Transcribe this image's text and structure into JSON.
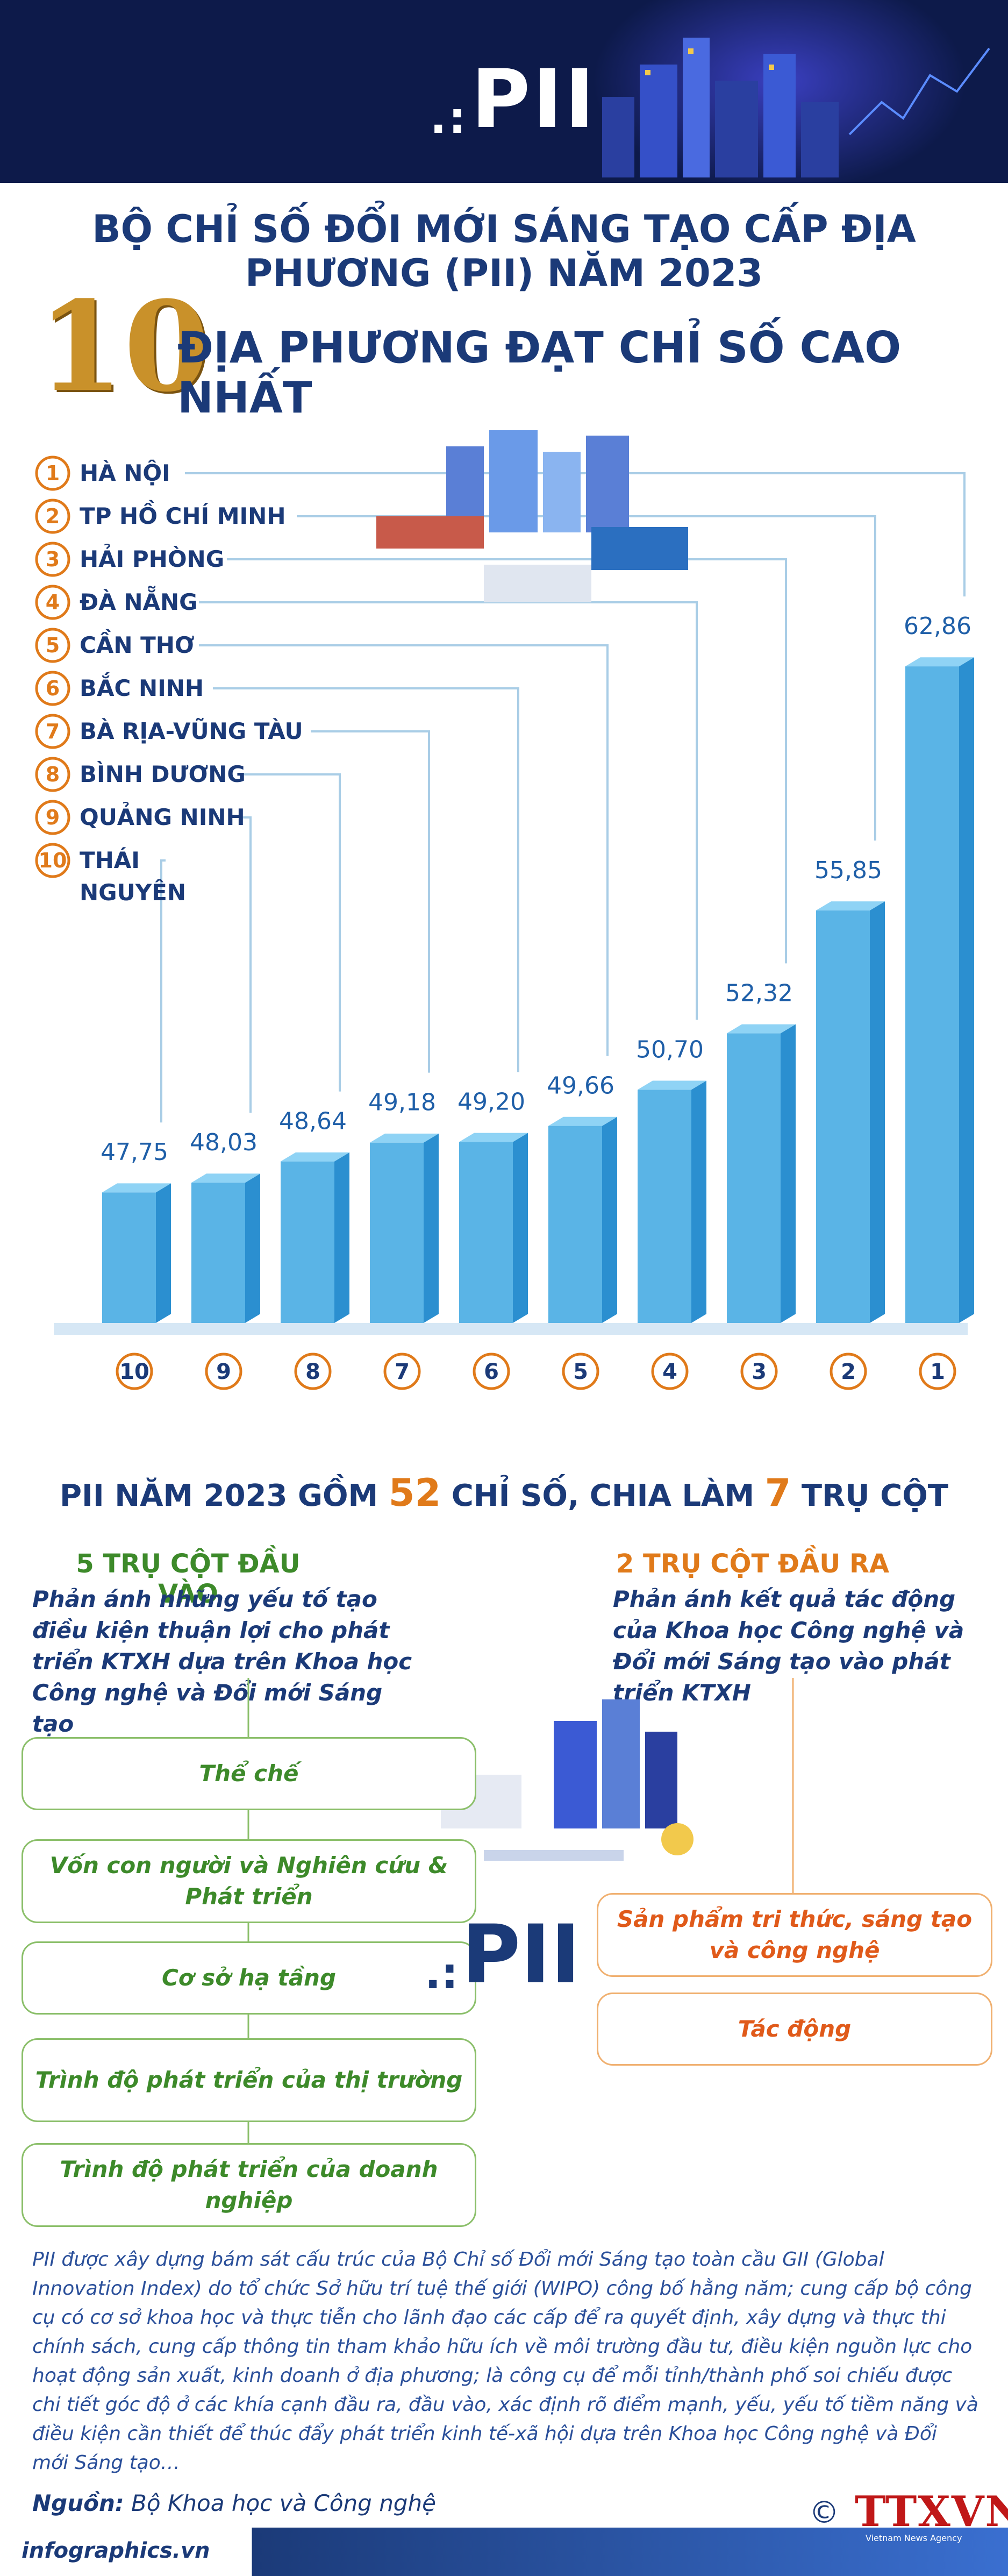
{
  "header": {
    "logo": "PII",
    "title": "BỘ CHỈ SỐ ĐỔI MỚI SÁNG TẠO CẤP ĐỊA PHƯƠNG (PII) NĂM 2023",
    "big_number": "10",
    "subtitle": "ĐỊA PHƯƠNG ĐẠT CHỈ SỐ CAO NHẤT"
  },
  "chart_data": {
    "type": "bar",
    "categories": [
      "Thái Nguyên",
      "Quảng Ninh",
      "Bình Dương",
      "Bà Rịa-Vũng Tàu",
      "Bắc Ninh",
      "Cần Thơ",
      "Đà Nẵng",
      "Hải Phòng",
      "TP Hồ Chí Minh",
      "Hà Nội"
    ],
    "values": [
      47.75,
      48.03,
      48.64,
      49.18,
      49.2,
      49.66,
      50.7,
      52.32,
      55.85,
      62.86
    ],
    "value_labels": [
      "47,75",
      "48,03",
      "48,64",
      "49,18",
      "49,20",
      "49,66",
      "50,70",
      "52,32",
      "55,85",
      "62,86"
    ],
    "rank_labels": [
      "10",
      "9",
      "8",
      "7",
      "6",
      "5",
      "4",
      "3",
      "2",
      "1"
    ],
    "legend": [
      {
        "rank": "1",
        "name": "HÀ NỘI"
      },
      {
        "rank": "2",
        "name": "TP HỒ CHÍ MINH"
      },
      {
        "rank": "3",
        "name": "HẢI PHÒNG"
      },
      {
        "rank": "4",
        "name": "ĐÀ NẴNG"
      },
      {
        "rank": "5",
        "name": "CẦN THƠ"
      },
      {
        "rank": "6",
        "name": "BẮC NINH"
      },
      {
        "rank": "7",
        "name": "BÀ RỊA-VŨNG TÀU"
      },
      {
        "rank": "8",
        "name": "BÌNH DƯƠNG"
      },
      {
        "rank": "9",
        "name": "QUẢNG NINH"
      },
      {
        "rank": "10",
        "name": "THÁI NGUYÊN"
      }
    ],
    "colors": {
      "bar_front": "#5ab4e6",
      "bar_side": "#2b8fd0",
      "bar_top": "#8fd3f5",
      "rank_circle": "#e07a1a",
      "leader_line": "#a9cde6",
      "value_label": "#1f5fa8"
    }
  },
  "pillars": {
    "title_prefix": "PII NĂM 2023 GỒM",
    "count_indicators": "52",
    "title_middle": "CHỈ SỐ, CHIA LÀM",
    "count_pillars": "7",
    "title_suffix": "TRỤ CỘT",
    "input": {
      "title": "5 TRỤ CỘT ĐẦU VÀO",
      "description": "Phản ánh những yếu tố tạo điều kiện thuận lợi cho phát triển KTXH dựa trên Khoa học Công nghệ và Đổi mới Sáng tạo",
      "items": [
        "Thể chế",
        "Vốn con người và Nghiên cứu & Phát triển",
        "Cơ sở hạ tầng",
        "Trình độ phát triển của thị trường",
        "Trình độ phát triển của doanh nghiệp"
      ]
    },
    "output": {
      "title": "2 TRỤ CỘT ĐẦU RA",
      "description": "Phản ánh kết quả tác động của Khoa học Công nghệ và Đổi mới Sáng tạo vào phát triển KTXH",
      "items": [
        "Sản phẩm tri thức, sáng tạo và công nghệ",
        "Tác động"
      ]
    },
    "logo": "PII"
  },
  "paragraph": "PII được xây dựng bám sát cấu trúc của Bộ Chỉ số Đổi mới Sáng tạo toàn cầu GII (Global Innovation Index) do tổ chức Sở hữu trí tuệ thế giới (WIPO) công bố hằng năm; cung cấp bộ công cụ có cơ sở khoa học và thực tiễn cho lãnh đạo các cấp để ra quyết định, xây dựng và thực thi chính sách, cung cấp thông tin tham khảo hữu ích về môi trường đầu tư, điều kiện nguồn lực cho hoạt động sản xuất, kinh doanh ở địa phương; là công cụ để mỗi tỉnh/thành phố soi chiếu được chi tiết góc độ ở các khía cạnh đầu ra, đầu vào, xác định rõ điểm mạnh, yếu, yếu tố tiềm năng và điều kiện cần thiết để thúc đẩy phát triển kinh tế-xã hội dựa trên Khoa học Công nghệ và Đổi mới Sáng tạo…",
  "footer": {
    "source_label": "Nguồn:",
    "source_value": "Bộ Khoa học và Công nghệ",
    "site": "infographics.vn",
    "brand": "TTXVN",
    "brand_sub": "Vietnam News Agency",
    "copyright": "©"
  }
}
